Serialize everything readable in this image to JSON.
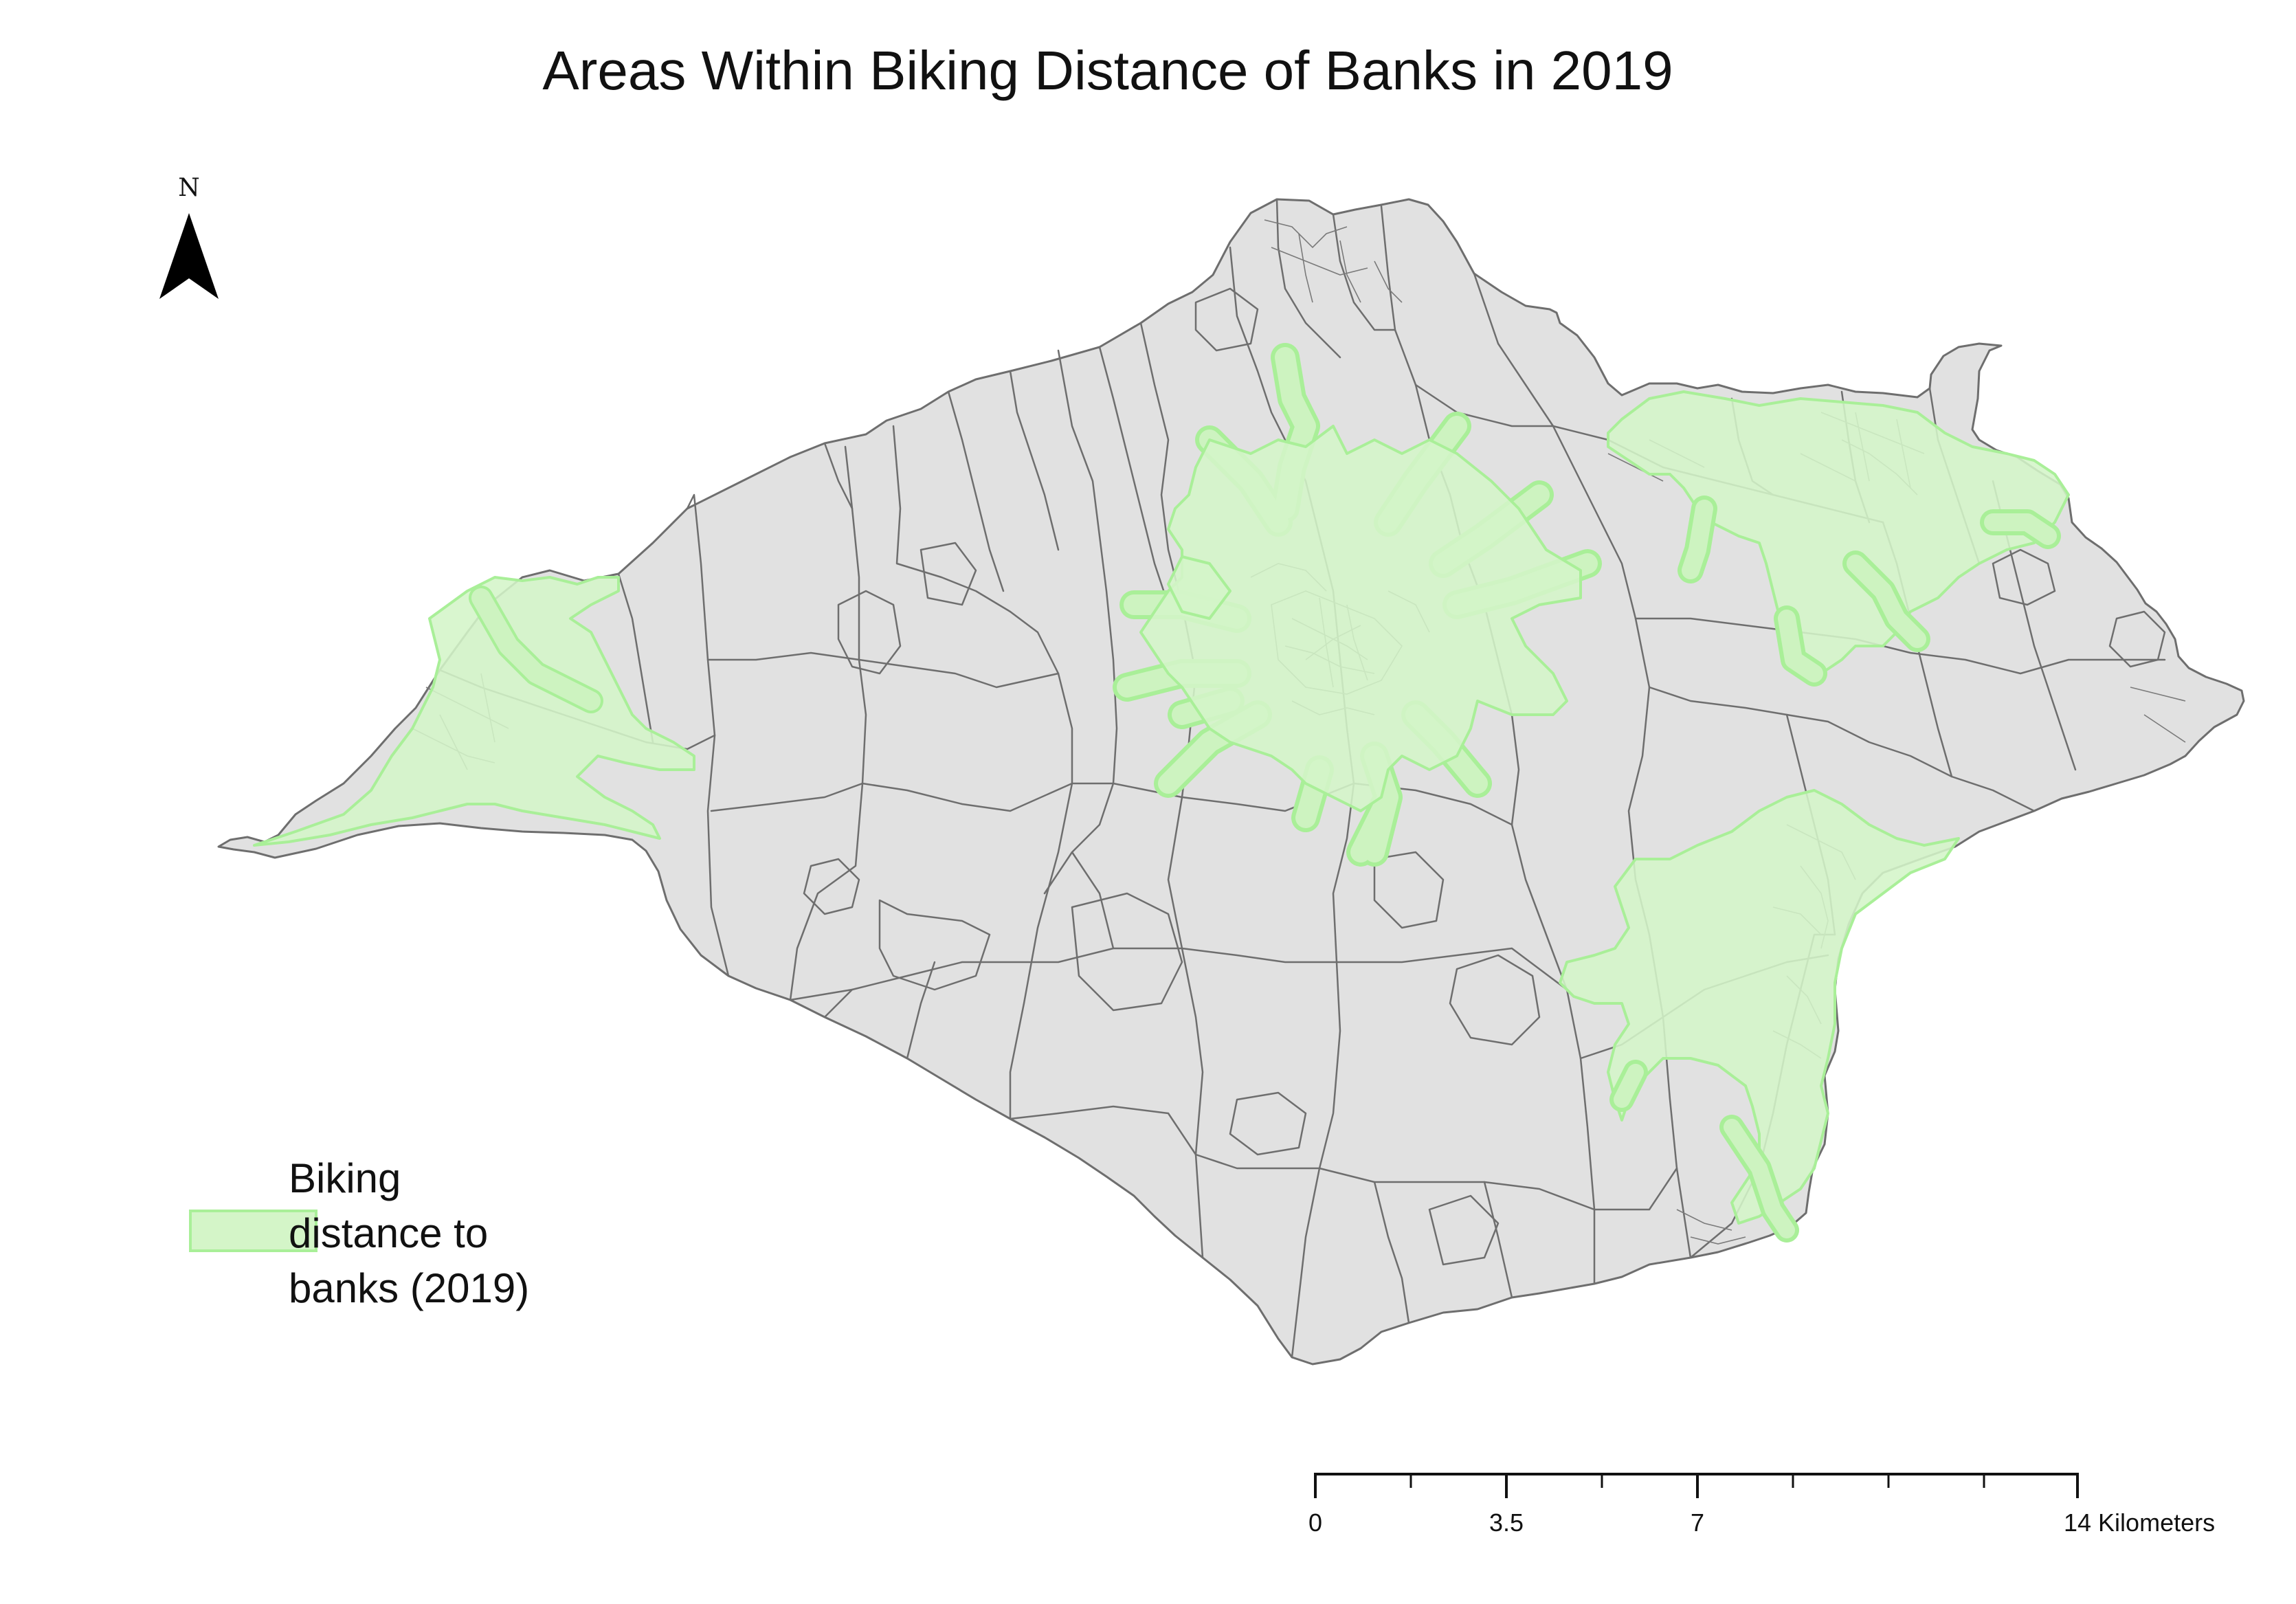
{
  "map": {
    "title": "Areas Within Biking Distance of Banks in 2019",
    "north_arrow": {
      "letter": "N",
      "icon": "north-arrow-icon"
    },
    "legend": {
      "label_lines": [
        "Biking",
        "distance to",
        "banks (2019)"
      ],
      "swatch_color": "#d4f5c8",
      "swatch_outline": "#a9ef98"
    },
    "scale_bar": {
      "labels": [
        "0",
        "3.5",
        "7",
        "14 Kilometers"
      ]
    },
    "colors": {
      "land": "#e1e1e1",
      "boundary": "#6e6e6e",
      "buffer": "#d4f5c8"
    }
  }
}
